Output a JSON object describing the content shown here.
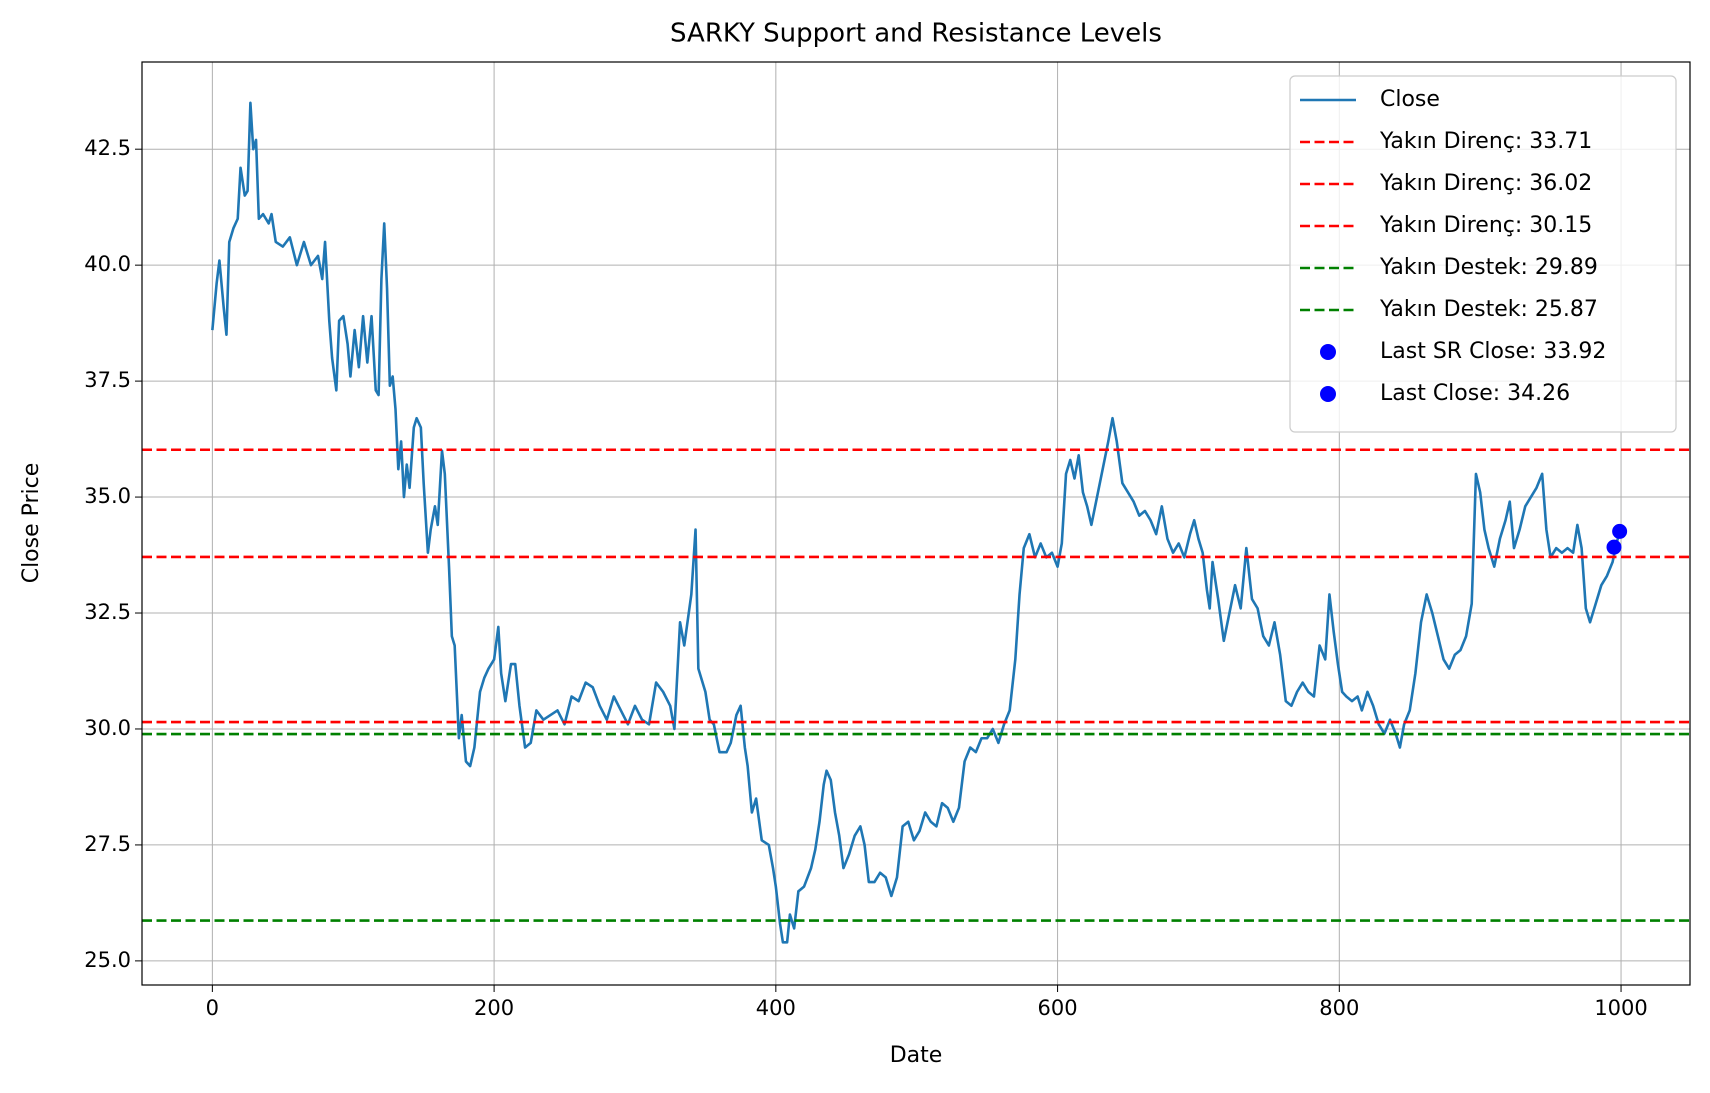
{
  "chart_data": {
    "type": "line",
    "title": "SARKY Support and Resistance Levels",
    "x_label": "Date",
    "y_label": "Close Price",
    "xlim": [
      -49.95,
      1048.95
    ],
    "ylim": [
      24.48,
      44.38
    ],
    "xticks": [
      0,
      200,
      400,
      600,
      800,
      1000
    ],
    "yticks": [
      {
        "value": 25,
        "label": "25.0"
      },
      27.5,
      {
        "value": 30,
        "label": "30.0"
      },
      32.5,
      {
        "value": 35,
        "label": "35.0"
      },
      37.5,
      {
        "value": 40,
        "label": "40.0"
      },
      42.5
    ],
    "grid": true,
    "legend": "upper right",
    "x": [
      0,
      3,
      5,
      8,
      10,
      12,
      15,
      18,
      20,
      23,
      25,
      27,
      29,
      31,
      33,
      36,
      40,
      42,
      45,
      50,
      55,
      60,
      65,
      70,
      75,
      78,
      80,
      83,
      85,
      88,
      90,
      93,
      96,
      98,
      101,
      104,
      107,
      110,
      113,
      116,
      118,
      120,
      122,
      124,
      126,
      128,
      130,
      132,
      134,
      136,
      138,
      140,
      143,
      145,
      148,
      150,
      153,
      155,
      158,
      160,
      163,
      165,
      168,
      170,
      172,
      175,
      177,
      180,
      183,
      186,
      190,
      193,
      196,
      200,
      203,
      205,
      208,
      212,
      215,
      218,
      222,
      226,
      230,
      235,
      240,
      245,
      250,
      255,
      260,
      265,
      270,
      275,
      280,
      285,
      290,
      295,
      300,
      305,
      310,
      315,
      320,
      325,
      328,
      332,
      335,
      340,
      343,
      345,
      350,
      353,
      356,
      360,
      365,
      368,
      372,
      375,
      378,
      380,
      383,
      386,
      390,
      395,
      398,
      400,
      403,
      405,
      408,
      410,
      413,
      416,
      420,
      425,
      428,
      431,
      434,
      436,
      439,
      442,
      445,
      448,
      452,
      456,
      460,
      463,
      466,
      470,
      474,
      478,
      482,
      486,
      490,
      494,
      498,
      502,
      506,
      510,
      514,
      518,
      522,
      526,
      530,
      534,
      538,
      542,
      546,
      550,
      554,
      558,
      562,
      566,
      570,
      573,
      576,
      580,
      584,
      588,
      592,
      596,
      600,
      603,
      606,
      609,
      612,
      615,
      618,
      621,
      624,
      628,
      632,
      636,
      639,
      642,
      646,
      650,
      654,
      658,
      662,
      666,
      670,
      674,
      678,
      682,
      686,
      690,
      694,
      697,
      700,
      703,
      706,
      708,
      710,
      714,
      718,
      722,
      726,
      730,
      734,
      738,
      742,
      746,
      750,
      754,
      758,
      762,
      766,
      770,
      774,
      778,
      782,
      786,
      790,
      793,
      796,
      799,
      802,
      805,
      809,
      813,
      816,
      820,
      824,
      828,
      832,
      836,
      840,
      843,
      846,
      850,
      854,
      858,
      862,
      866,
      870,
      874,
      878,
      882,
      886,
      890,
      894,
      897,
      900,
      903,
      906,
      910,
      914,
      918,
      921,
      924,
      928,
      932,
      936,
      940,
      944,
      947,
      950,
      954,
      958,
      962,
      966,
      969,
      972,
      975,
      978,
      982,
      986,
      990,
      994,
      996,
      999
    ],
    "series": [
      {
        "name": "Close",
        "color": "#1f77b4",
        "values": [
          38.6,
          39.6,
          40.1,
          39.1,
          38.5,
          40.5,
          40.8,
          41.0,
          42.1,
          41.5,
          41.6,
          43.5,
          42.5,
          42.7,
          41.0,
          41.1,
          40.9,
          41.1,
          40.5,
          40.4,
          40.6,
          40.0,
          40.5,
          40.0,
          40.2,
          39.7,
          40.5,
          38.8,
          38.0,
          37.3,
          38.8,
          38.9,
          38.3,
          37.6,
          38.6,
          37.8,
          38.9,
          37.9,
          38.9,
          37.3,
          37.2,
          39.7,
          40.9,
          39.5,
          37.4,
          37.6,
          36.9,
          35.6,
          36.2,
          35.0,
          35.7,
          35.2,
          36.5,
          36.7,
          36.5,
          35.3,
          33.8,
          34.3,
          34.8,
          34.4,
          36.0,
          35.5,
          33.5,
          32.0,
          31.8,
          29.8,
          30.3,
          29.3,
          29.2,
          29.6,
          30.8,
          31.1,
          31.3,
          31.5,
          32.2,
          31.2,
          30.6,
          31.4,
          31.4,
          30.5,
          29.6,
          29.7,
          30.4,
          30.2,
          30.3,
          30.4,
          30.1,
          30.7,
          30.6,
          31.0,
          30.9,
          30.5,
          30.2,
          30.7,
          30.4,
          30.1,
          30.5,
          30.2,
          30.1,
          31.0,
          30.8,
          30.5,
          30.0,
          32.3,
          31.8,
          32.9,
          34.3,
          31.3,
          30.8,
          30.2,
          30.1,
          29.5,
          29.5,
          29.7,
          30.3,
          30.5,
          29.6,
          29.2,
          28.2,
          28.5,
          27.6,
          27.5,
          27.0,
          26.6,
          25.8,
          25.4,
          25.4,
          26.0,
          25.7,
          26.5,
          26.6,
          27.0,
          27.4,
          28.0,
          28.8,
          29.1,
          28.9,
          28.2,
          27.7,
          27.0,
          27.3,
          27.7,
          27.9,
          27.5,
          26.7,
          26.7,
          26.9,
          26.8,
          26.4,
          26.8,
          27.9,
          28.0,
          27.6,
          27.8,
          28.2,
          28.0,
          27.9,
          28.4,
          28.3,
          28.0,
          28.3,
          29.3,
          29.6,
          29.5,
          29.8,
          29.8,
          30.0,
          29.7,
          30.1,
          30.4,
          31.5,
          32.9,
          33.9,
          34.2,
          33.7,
          34.0,
          33.7,
          33.8,
          33.5,
          34.0,
          35.5,
          35.8,
          35.4,
          35.9,
          35.1,
          34.8,
          34.4,
          35.0,
          35.6,
          36.2,
          36.7,
          36.2,
          35.3,
          35.1,
          34.9,
          34.6,
          34.7,
          34.5,
          34.2,
          34.8,
          34.1,
          33.8,
          34.0,
          33.7,
          34.2,
          34.5,
          34.1,
          33.8,
          33.0,
          32.6,
          33.6,
          32.8,
          31.9,
          32.5,
          33.1,
          32.6,
          33.9,
          32.8,
          32.6,
          32.0,
          31.8,
          32.3,
          31.6,
          30.6,
          30.5,
          30.8,
          31.0,
          30.8,
          30.7,
          31.8,
          31.5,
          32.9,
          32.1,
          31.4,
          30.8,
          30.7,
          30.6,
          30.7,
          30.4,
          30.8,
          30.5,
          30.1,
          29.9,
          30.2,
          29.9,
          29.6,
          30.1,
          30.4,
          31.2,
          32.3,
          32.9,
          32.5,
          32.0,
          31.5,
          31.3,
          31.6,
          31.7,
          32.0,
          32.7,
          35.5,
          35.1,
          34.3,
          33.9,
          33.5,
          34.1,
          34.5,
          34.9,
          33.9,
          34.3,
          34.8,
          35.0,
          35.2,
          35.5,
          34.3,
          33.7,
          33.9,
          33.8,
          33.9,
          33.8,
          34.4,
          33.9,
          32.6,
          32.3,
          32.7,
          33.1,
          33.3,
          33.6,
          33.9,
          34.26
        ]
      }
    ],
    "hlines": [
      {
        "name": "Yakın Direnç: 33.71",
        "color": "#ff0000",
        "value": 33.71
      },
      {
        "name": "Yakın Direnç: 36.02",
        "color": "#ff0000",
        "value": 36.02
      },
      {
        "name": "Yakın Direnç: 30.15",
        "color": "#ff0000",
        "value": 30.15
      },
      {
        "name": "Yakın Destek: 29.89",
        "color": "#008000",
        "value": 29.89
      },
      {
        "name": "Yakın Destek: 25.87",
        "color": "#008000",
        "value": 25.87
      }
    ],
    "points": [
      {
        "name": "Last SR Close: 33.92",
        "color": "#0000ff",
        "x": 995,
        "y": 33.92
      },
      {
        "name": "Last Close: 34.26",
        "color": "#0000ff",
        "x": 999,
        "y": 34.26
      }
    ]
  }
}
